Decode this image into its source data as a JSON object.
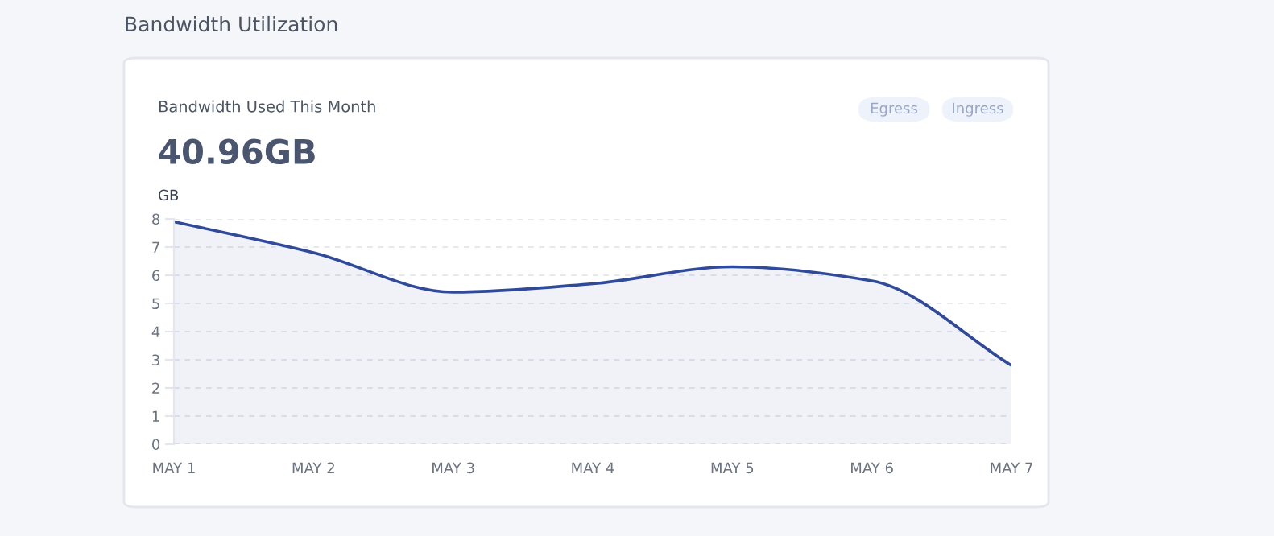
{
  "chart_data": {
    "type": "area",
    "title": "Bandwidth Used This Month",
    "subtitle": "40.96GB",
    "ylabel": "GB",
    "annotations": [
      "Bandwidth Utilization",
      "Egress",
      "Ingress"
    ],
    "categories": [
      "MAY 1",
      "MAY 2",
      "MAY 3",
      "MAY 4",
      "MAY 5",
      "MAY 6",
      "MAY 7"
    ],
    "series": [
      {
        "color": "#2f4a9a",
        "values": [
          7.9,
          6.8,
          5.4,
          5.7,
          6.3,
          5.8,
          2.8
        ]
      }
    ],
    "ylim": [
      0,
      8
    ],
    "yticks": [
      0,
      1,
      2,
      3,
      4,
      5,
      6,
      7,
      8
    ],
    "grid": "y"
  }
}
